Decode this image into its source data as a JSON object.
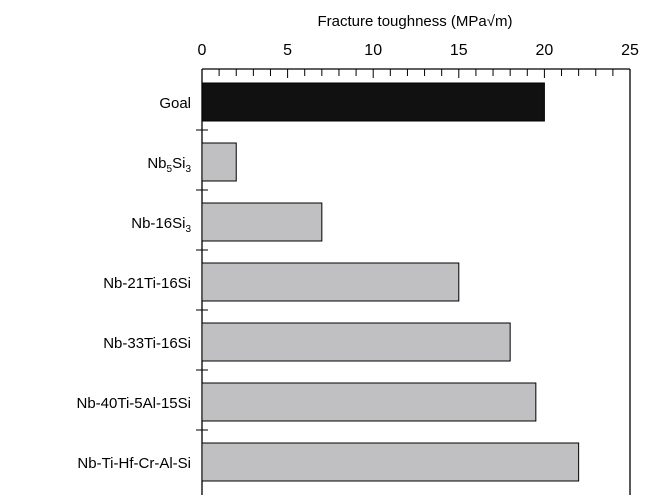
{
  "chart_data": {
    "type": "bar",
    "orientation": "horizontal",
    "xlabel": "Fracture toughness (MPa√m)",
    "xlim": [
      0,
      25
    ],
    "xticks": [
      0,
      5,
      10,
      15,
      20,
      25
    ],
    "categories": [
      {
        "base": "Goal",
        "sub": ""
      },
      {
        "base": "Nb",
        "sub": "5",
        "base2": "Si",
        "sub2": "3"
      },
      {
        "base": "Nb-16Si",
        "sub": "3"
      },
      {
        "base": "Nb-21Ti-16Si",
        "sub": ""
      },
      {
        "base": "Nb-33Ti-16Si",
        "sub": ""
      },
      {
        "base": "Nb-40Ti-5Al-15Si",
        "sub": ""
      },
      {
        "base": "Nb-Ti-Hf-Cr-Al-Si",
        "sub": ""
      }
    ],
    "values": [
      20,
      2,
      7,
      15,
      18,
      19.5,
      22
    ],
    "colors": [
      "#111111",
      "#c0c0c2",
      "#c0c0c2",
      "#c0c0c2",
      "#c0c0c2",
      "#c0c0c2",
      "#c0c0c2"
    ],
    "grid": false,
    "legend": "none"
  }
}
